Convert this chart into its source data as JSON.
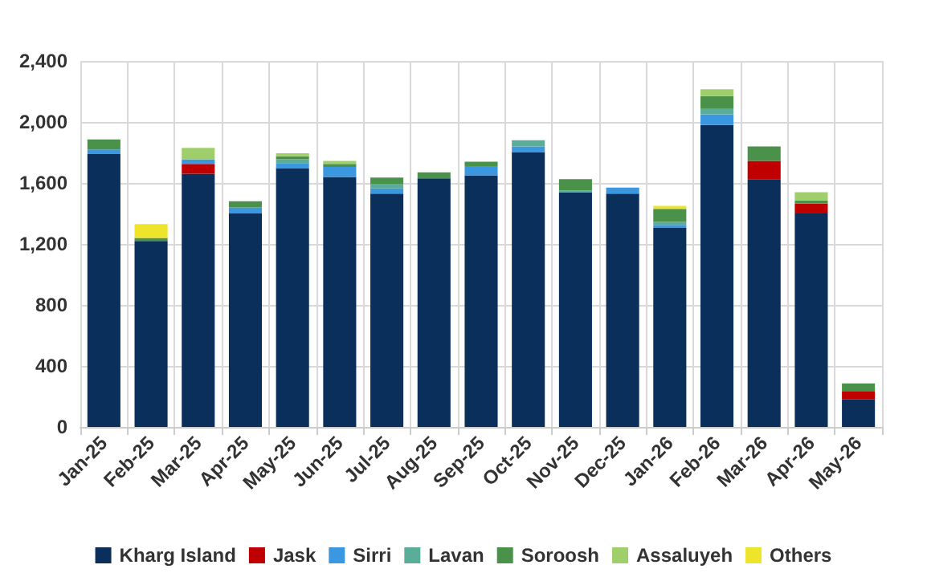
{
  "chart_data": {
    "type": "bar",
    "stacked": true,
    "grid": true,
    "legend": "bottom",
    "categories": [
      "Jan-25",
      "Feb-25",
      "Mar-25",
      "Apr-25",
      "May-25",
      "Jun-25",
      "Jul-25",
      "Aug-25",
      "Sep-25",
      "Oct-25",
      "Nov-25",
      "Dec-25",
      "Jan-26",
      "Feb-26",
      "Mar-26",
      "Apr-26",
      "May-26"
    ],
    "ylim": [
      0,
      2400
    ],
    "yticks": [
      {
        "value": 0,
        "label": "0"
      },
      {
        "value": 400,
        "label": "400"
      },
      {
        "value": 800,
        "label": "800"
      },
      {
        "value": 1200,
        "label": "1,200"
      },
      {
        "value": 1600,
        "label": "1,600"
      },
      {
        "value": 2000,
        "label": "2,000"
      },
      {
        "value": 2400,
        "label": "2,400"
      }
    ],
    "series": [
      {
        "name": "Kharg Island",
        "color": "#0b2f5b",
        "values": [
          1790,
          1220,
          1660,
          1400,
          1695,
          1640,
          1530,
          1630,
          1650,
          1800,
          1540,
          1530,
          1305,
          1980,
          1625,
          1400,
          180
        ]
      },
      {
        "name": "Jask",
        "color": "#c00000",
        "values": [
          null,
          null,
          65,
          null,
          null,
          null,
          null,
          null,
          null,
          null,
          null,
          null,
          null,
          null,
          120,
          65,
          55
        ]
      },
      {
        "name": "Sirri",
        "color": "#3a97e0",
        "values": [
          30,
          null,
          30,
          40,
          35,
          65,
          35,
          null,
          60,
          40,
          null,
          40,
          20,
          70,
          null,
          null,
          null
        ]
      },
      {
        "name": "Lavan",
        "color": "#5aad98",
        "values": [
          null,
          null,
          null,
          null,
          25,
          null,
          30,
          null,
          null,
          40,
          10,
          null,
          20,
          35,
          null,
          null,
          null
        ]
      },
      {
        "name": "Soroosh",
        "color": "#4a924a",
        "values": [
          65,
          20,
          null,
          40,
          20,
          20,
          40,
          40,
          30,
          null,
          75,
          null,
          85,
          85,
          95,
          20,
          50
        ]
      },
      {
        "name": "Assaluyeh",
        "color": "#9fcf6b",
        "values": [
          null,
          null,
          75,
          null,
          20,
          20,
          null,
          null,
          null,
          null,
          null,
          null,
          null,
          45,
          null,
          55,
          null
        ]
      },
      {
        "name": "Others",
        "color": "#eee52a",
        "values": [
          null,
          90,
          null,
          null,
          null,
          null,
          null,
          null,
          null,
          null,
          null,
          null,
          20,
          null,
          null,
          null,
          null
        ]
      }
    ]
  }
}
